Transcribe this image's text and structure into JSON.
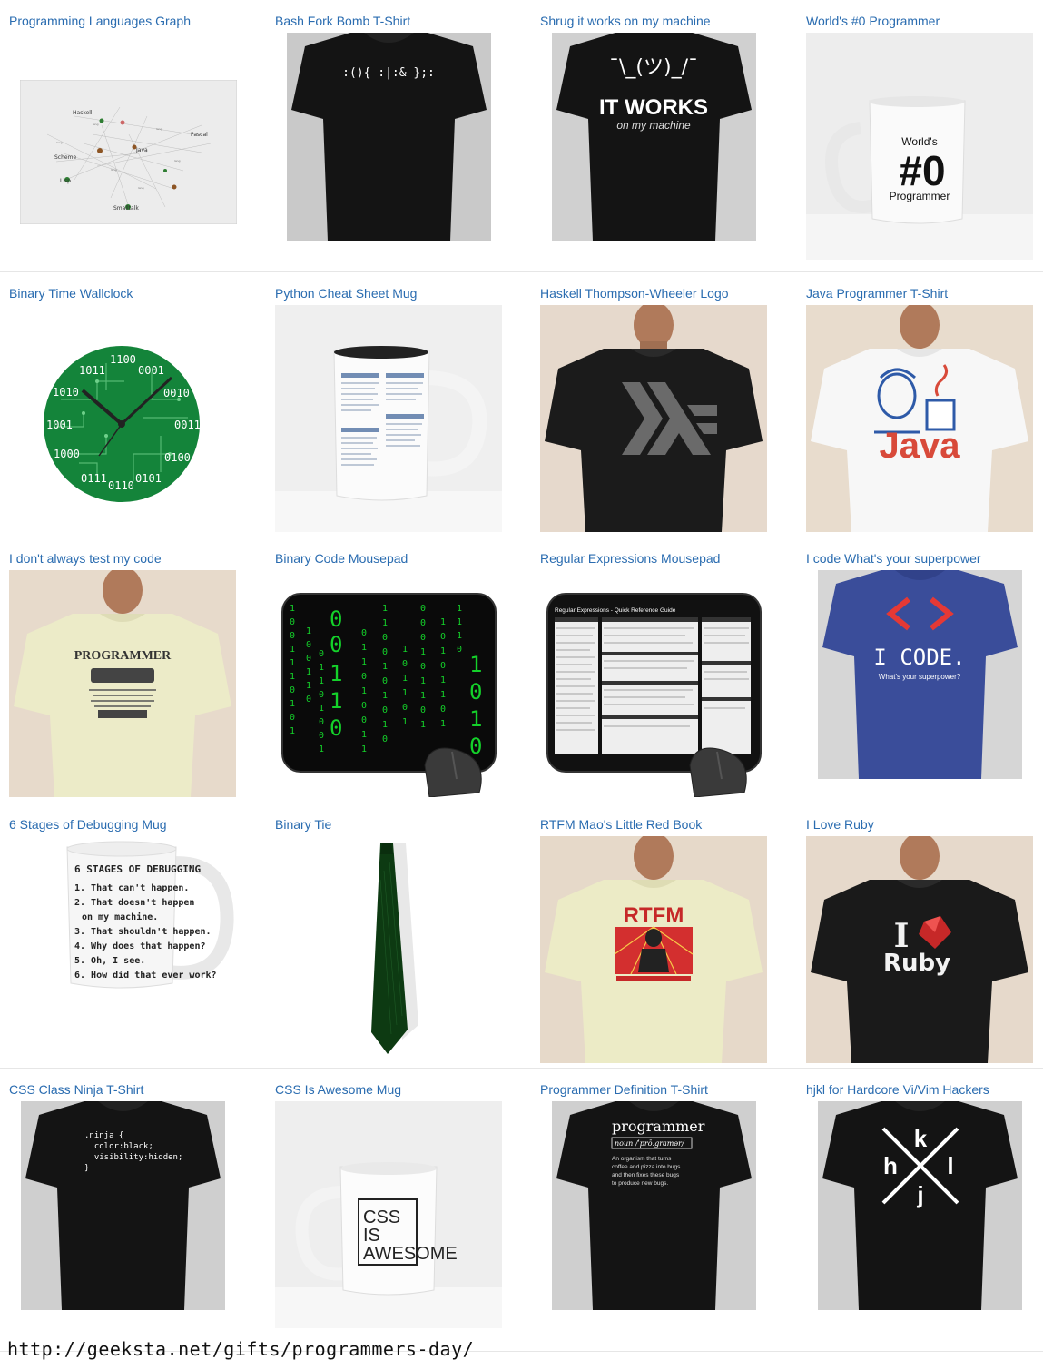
{
  "products": [
    {
      "title": "Programming Languages Graph"
    },
    {
      "title": "Bash Fork Bomb T-Shirt",
      "print": ":(){ :|:& };:"
    },
    {
      "title": "Shrug it works on my machine",
      "print_shrug": "¯\\_(ツ)_/¯",
      "print_main": "IT WORKS",
      "print_sub": "on my machine"
    },
    {
      "title": "World's #0 Programmer",
      "print_top": "World's",
      "print_main": "#0",
      "print_sub": "Programmer"
    },
    {
      "title": "Binary Time Wallclock"
    },
    {
      "title": "Python Cheat Sheet Mug"
    },
    {
      "title": "Haskell Thompson-Wheeler Logo"
    },
    {
      "title": "Java Programmer T-Shirt",
      "print": "Java"
    },
    {
      "title": "I don't always test my code",
      "print": "PROGRAMMER"
    },
    {
      "title": "Binary Code Mousepad"
    },
    {
      "title": "Regular Expressions Mousepad",
      "print": "Regular Expressions - Quick Reference Guide"
    },
    {
      "title": "I code What's your superpower",
      "print_main": "I CODE.",
      "print_sub": "What's your superpower?"
    },
    {
      "title": "6 Stages of Debugging Mug",
      "print_lines": [
        "6 STAGES OF DEBUGGING",
        "1. That can't happen.",
        "2. That doesn't happen",
        "on my machine.",
        "3. That shouldn't happen.",
        "4. Why does that happen?",
        "5. Oh, I see.",
        "6. How did that ever work?"
      ]
    },
    {
      "title": "Binary Tie"
    },
    {
      "title": "RTFM Mao's Little Red Book",
      "print": "RTFM"
    },
    {
      "title": "I Love Ruby",
      "print_i": "I",
      "print_ruby": "Ruby"
    },
    {
      "title": "CSS Class Ninja T-Shirt",
      "print_lines": [
        ".ninja {",
        "  color:black;",
        "  visibility:hidden;",
        "}"
      ]
    },
    {
      "title": "CSS Is Awesome Mug",
      "print_lines": [
        "CSS",
        "IS",
        "AWESOME"
      ]
    },
    {
      "title": "Programmer Definition T-Shirt",
      "print_word": "programmer",
      "print_pron": "noun /ˈprō.gramər/",
      "print_def": [
        "An organism that turns",
        "coffee and pizza into bugs",
        "and then fixes these bugs",
        "to produce new bugs."
      ]
    },
    {
      "title": "hjkl for Hardcore Vi/Vim Hackers",
      "print_keys": [
        "h",
        "j",
        "k",
        "l"
      ]
    }
  ],
  "footer": {
    "url": "http://geeksta.net/gifts/programmers-day/"
  },
  "colors": {
    "link": "#2a6cb0",
    "divider": "#e6e6e6",
    "shirt_black": "#141414"
  }
}
